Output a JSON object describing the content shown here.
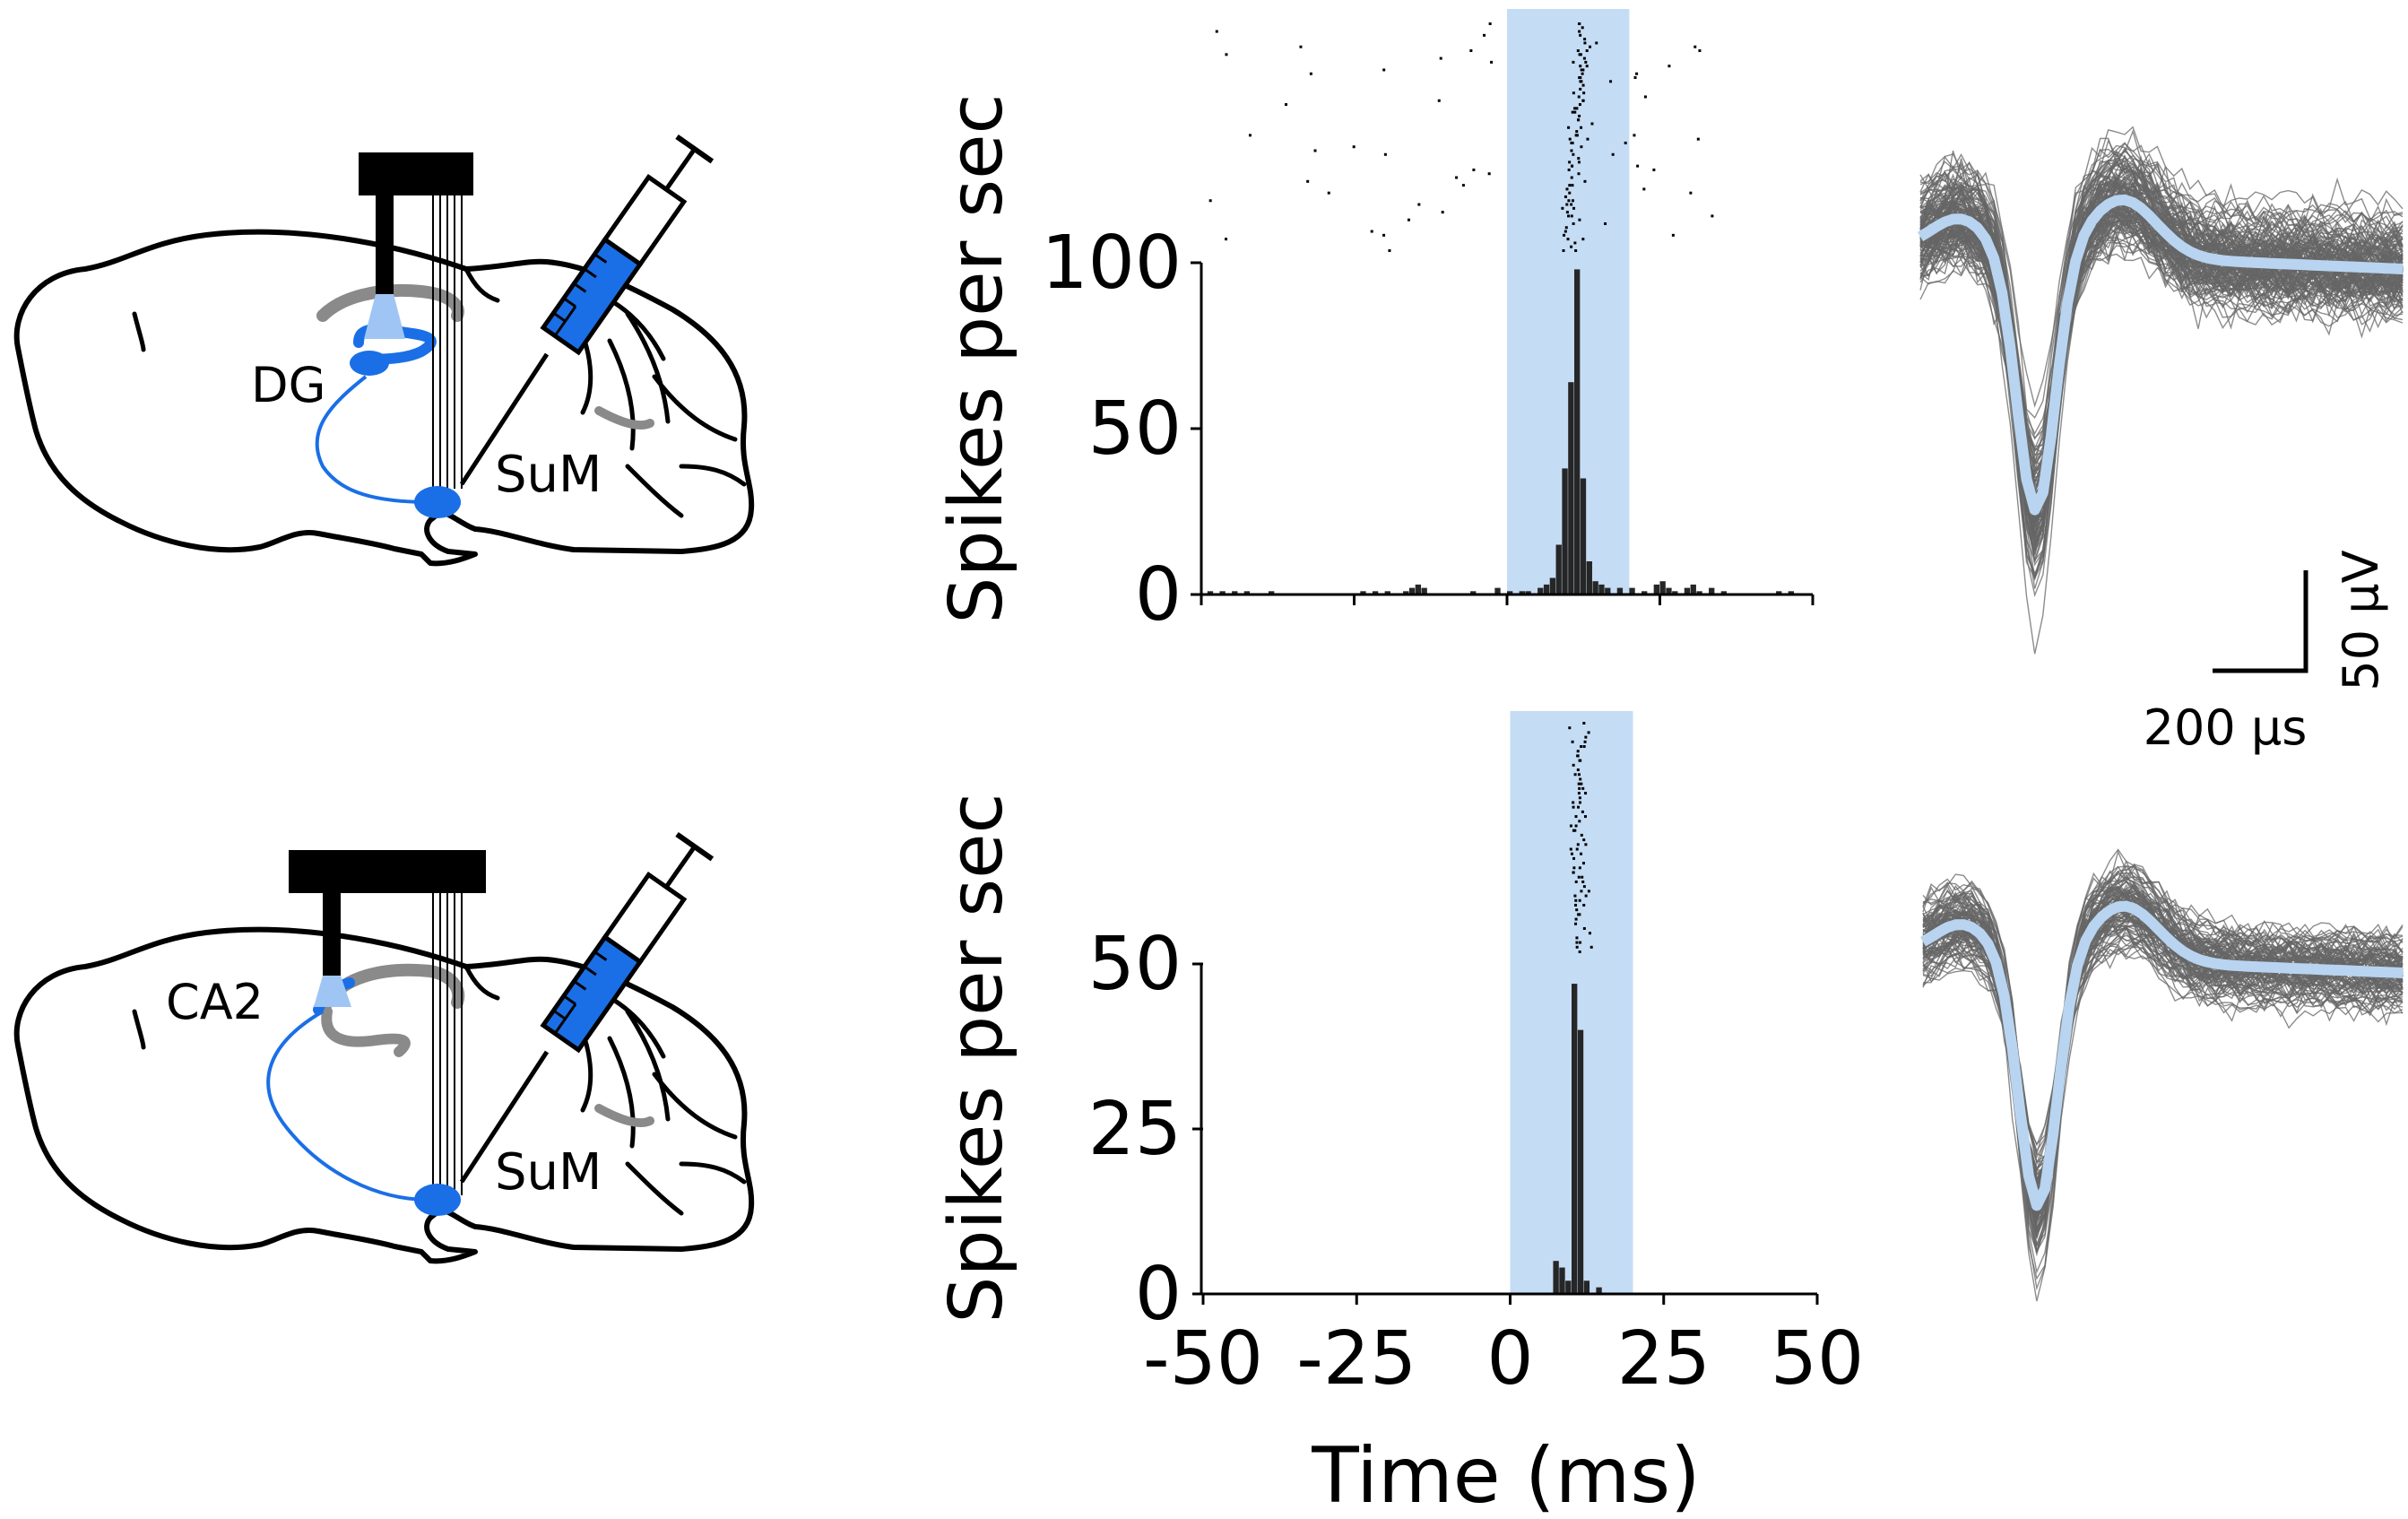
{
  "figure": {
    "top_diagram": {
      "region_label": "DG",
      "target_label": "SuM"
    },
    "bottom_diagram": {
      "region_label": "CA2",
      "target_label": "SuM"
    },
    "ylabel": "Spikes per sec",
    "xlabel": "Time (ms)",
    "stim_color": "#c5dcf5",
    "opto_color": "#1a6fe6",
    "mean_wave_color": "#b8d4f0",
    "scalebar": {
      "x_label": "200 µs",
      "y_label": "50 µV"
    }
  },
  "chart_data": [
    {
      "type": "bar",
      "name": "top-psth",
      "xlim": [
        -50,
        50
      ],
      "ylim": [
        0,
        100
      ],
      "yticks": [
        "0",
        "50",
        "100"
      ],
      "stim_window": [
        0,
        20
      ],
      "bin_width": 1,
      "bins": [
        [
          -49,
          1
        ],
        [
          -47,
          1
        ],
        [
          -45,
          1
        ],
        [
          -43,
          1
        ],
        [
          -39,
          1
        ],
        [
          -24,
          1
        ],
        [
          -22,
          1
        ],
        [
          -20,
          1
        ],
        [
          -17,
          1
        ],
        [
          -16,
          2
        ],
        [
          -15,
          3
        ],
        [
          -14,
          2
        ],
        [
          -6,
          1
        ],
        [
          -2,
          2
        ],
        [
          0,
          1
        ],
        [
          2,
          1
        ],
        [
          3,
          1
        ],
        [
          5,
          2
        ],
        [
          6,
          3
        ],
        [
          7,
          5
        ],
        [
          8,
          15
        ],
        [
          9,
          38
        ],
        [
          10,
          64
        ],
        [
          11,
          98
        ],
        [
          12,
          35
        ],
        [
          13,
          10
        ],
        [
          14,
          4
        ],
        [
          15,
          3
        ],
        [
          16,
          2
        ],
        [
          18,
          2
        ],
        [
          20,
          2
        ],
        [
          22,
          1
        ],
        [
          24,
          3
        ],
        [
          25,
          4
        ],
        [
          26,
          2
        ],
        [
          27,
          1
        ],
        [
          29,
          2
        ],
        [
          30,
          3
        ],
        [
          31,
          1
        ],
        [
          33,
          2
        ],
        [
          35,
          1
        ],
        [
          44,
          1
        ],
        [
          46,
          1
        ]
      ],
      "raster_trials": 60,
      "background_rate": 0.0016
    },
    {
      "type": "bar",
      "name": "bottom-psth",
      "xlim": [
        -50,
        50
      ],
      "ylim": [
        0,
        50
      ],
      "xticks": [
        "-50",
        "-25",
        "0",
        "25",
        "50"
      ],
      "yticks": [
        "0",
        "25",
        "50"
      ],
      "stim_window": [
        0,
        20
      ],
      "bin_width": 1,
      "bins": [
        [
          7,
          5
        ],
        [
          8,
          4
        ],
        [
          9,
          2
        ],
        [
          10,
          47
        ],
        [
          11,
          40
        ],
        [
          12,
          2
        ],
        [
          14,
          1
        ]
      ],
      "raster_trials": 50,
      "background_rate": 0
    }
  ]
}
